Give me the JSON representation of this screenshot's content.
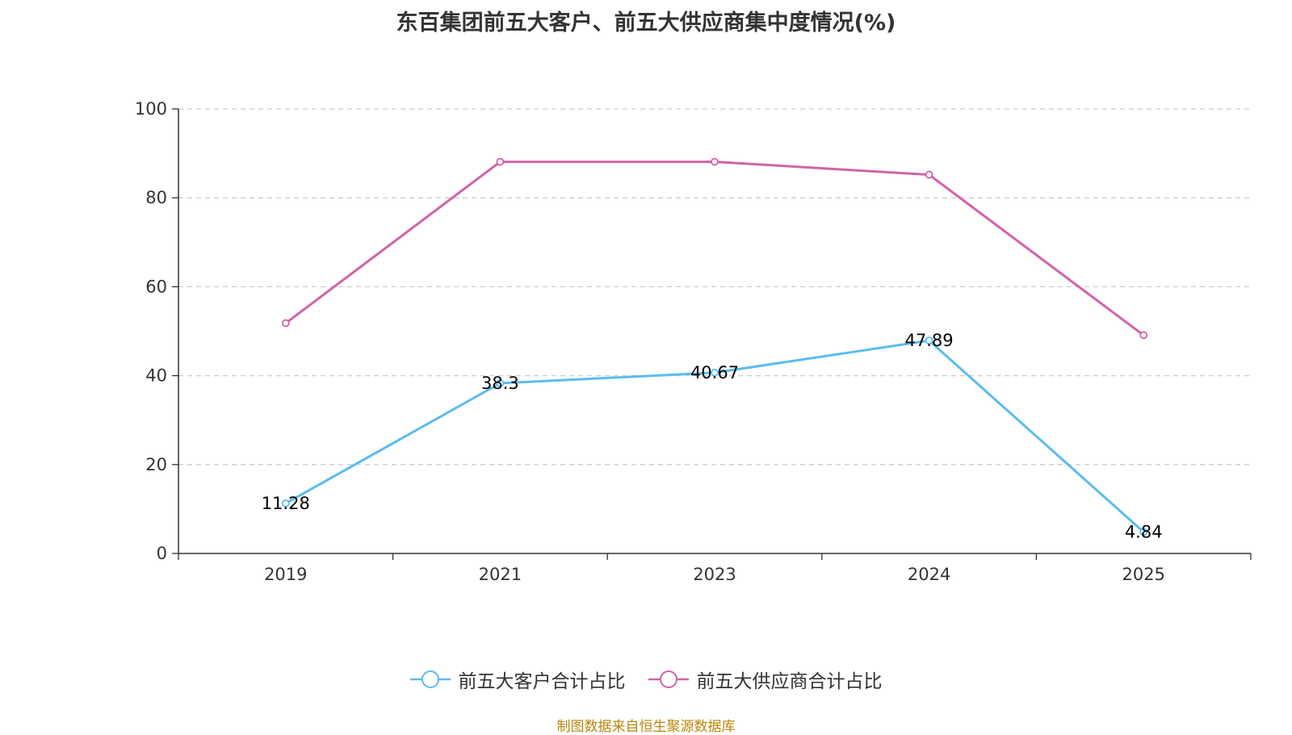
{
  "chart_data": {
    "type": "line",
    "title": "东百集团前五大客户、前五大供应商集中度情况(%)",
    "categories": [
      "2019",
      "2021",
      "2023",
      "2024",
      "2025"
    ],
    "ylim": [
      0,
      100
    ],
    "yticks": [
      0,
      20,
      40,
      60,
      80,
      100
    ],
    "grid": true,
    "legend_position": "bottom",
    "series": [
      {
        "name": "前五大客户合计占比",
        "color": "#5bbcf0",
        "values": [
          11.28,
          38.3,
          40.67,
          47.89,
          4.84
        ],
        "labels": [
          "11.28",
          "38.3",
          "40.67",
          "47.89",
          "4.84"
        ],
        "show_labels": true
      },
      {
        "name": "前五大供应商合计占比",
        "color": "#d063a8",
        "values": [
          51.8,
          88.1,
          88.1,
          85.2,
          49.1
        ],
        "show_labels": false
      }
    ]
  },
  "footer": {
    "source": "制图数据来自恒生聚源数据库"
  }
}
